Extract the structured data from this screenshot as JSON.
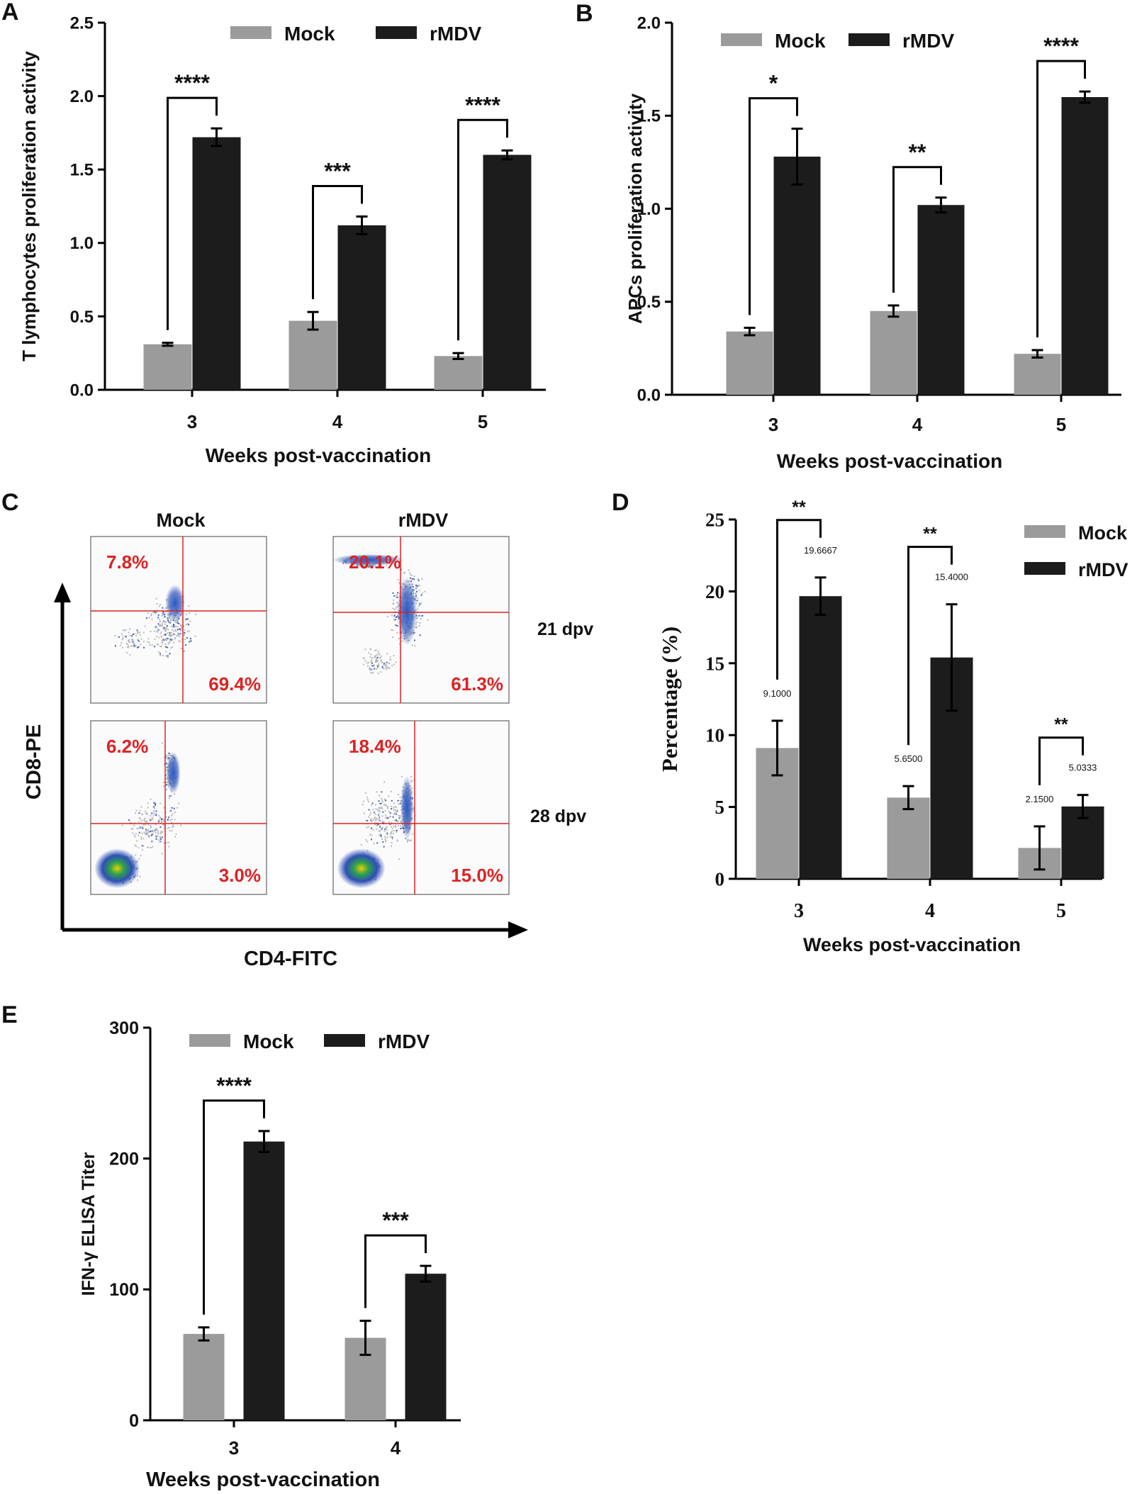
{
  "colors": {
    "mock": "#9b9b9b",
    "rmdv": "#1c1c1c",
    "gate": "#dd2222"
  },
  "chart_data": [
    {
      "panel": "A",
      "type": "bar",
      "categories": [
        "3",
        "4",
        "5"
      ],
      "series": [
        {
          "name": "Mock",
          "values": [
            0.31,
            0.47,
            0.23
          ],
          "errors": [
            0.01,
            0.06,
            0.02
          ]
        },
        {
          "name": "rMDV",
          "values": [
            1.72,
            1.12,
            1.6
          ],
          "errors": [
            0.06,
            0.06,
            0.03
          ]
        }
      ],
      "significance": [
        "****",
        "***",
        "****"
      ],
      "ylabel": "T lymphocytes proliferation activity",
      "xlabel": "Weeks post-vaccination",
      "ylim": [
        0,
        2.5
      ],
      "yticks": [
        "0.0",
        "0.5",
        "1.0",
        "1.5",
        "2.0",
        "2.5"
      ],
      "legend": "top"
    },
    {
      "panel": "B",
      "type": "bar",
      "categories": [
        "3",
        "4",
        "5"
      ],
      "series": [
        {
          "name": "Mock",
          "values": [
            0.34,
            0.45,
            0.22
          ],
          "errors": [
            0.02,
            0.03,
            0.02
          ]
        },
        {
          "name": "rMDV",
          "values": [
            1.28,
            1.02,
            1.6
          ],
          "errors": [
            0.15,
            0.04,
            0.03
          ]
        }
      ],
      "significance": [
        "*",
        "**",
        "****"
      ],
      "ylabel": "APCs proliferation activity",
      "xlabel": "Weeks post-vaccination",
      "ylim": [
        0,
        2.0
      ],
      "yticks": [
        "0.0",
        "0.5",
        "1.0",
        "1.5",
        "2.0"
      ],
      "legend": "top"
    },
    {
      "panel": "D",
      "type": "bar",
      "categories": [
        "3",
        "4",
        "5"
      ],
      "series": [
        {
          "name": "Mock",
          "values": [
            9.1,
            5.65,
            2.15
          ],
          "errors": [
            1.9,
            0.8,
            1.5
          ],
          "labels": [
            "9.1000",
            "5.6500",
            "2.1500"
          ]
        },
        {
          "name": "rMDV",
          "values": [
            19.6667,
            15.4,
            5.0333
          ],
          "errors": [
            1.3,
            3.7,
            0.8
          ],
          "labels": [
            "19.6667",
            "15.4000",
            "5.0333"
          ]
        }
      ],
      "significance": [
        "**",
        "**",
        "**"
      ],
      "ylabel": "Percentage (%)",
      "xlabel": "Weeks post-vaccination",
      "ylim": [
        0,
        25
      ],
      "yticks": [
        "0",
        "5",
        "10",
        "15",
        "20",
        "25"
      ],
      "legend": "top-right"
    },
    {
      "panel": "E",
      "type": "bar",
      "categories": [
        "3",
        "4"
      ],
      "series": [
        {
          "name": "Mock",
          "values": [
            66,
            63
          ],
          "errors": [
            5,
            13
          ]
        },
        {
          "name": "rMDV",
          "values": [
            213,
            112
          ],
          "errors": [
            8,
            6
          ]
        }
      ],
      "significance": [
        "****",
        "***"
      ],
      "ylabel": "IFN-γ  ELISA Titer",
      "xlabel": "Weeks  post-vaccination",
      "ylim": [
        0,
        300
      ],
      "yticks": [
        "0",
        "100",
        "200",
        "300"
      ],
      "legend": "top"
    }
  ],
  "flow": {
    "panel": "C",
    "col_titles": [
      "Mock",
      "rMDV"
    ],
    "row_labels": [
      "21 dpv",
      "28 dpv"
    ],
    "y_axis": "CD8-PE",
    "x_axis": "CD4-FITC",
    "plots": [
      {
        "upper_left": "7.8%",
        "lower_right": "69.4%"
      },
      {
        "upper_left": "20.1%",
        "lower_right": "61.3%"
      },
      {
        "upper_left": "6.2%",
        "lower_right": "3.0%"
      },
      {
        "upper_left": "18.4%",
        "lower_right": "15.0%"
      }
    ]
  }
}
